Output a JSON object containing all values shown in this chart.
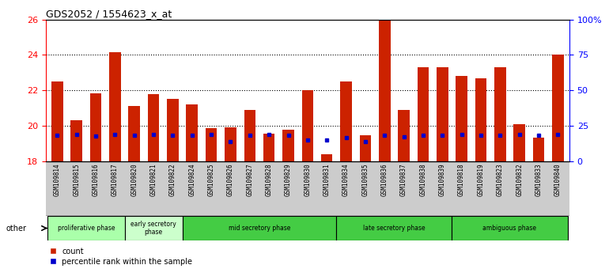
{
  "title": "GDS2052 / 1554623_x_at",
  "samples": [
    "GSM109814",
    "GSM109815",
    "GSM109816",
    "GSM109817",
    "GSM109820",
    "GSM109821",
    "GSM109822",
    "GSM109824",
    "GSM109825",
    "GSM109826",
    "GSM109827",
    "GSM109828",
    "GSM109829",
    "GSM109830",
    "GSM109831",
    "GSM109834",
    "GSM109835",
    "GSM109836",
    "GSM109837",
    "GSM109838",
    "GSM109839",
    "GSM109818",
    "GSM109819",
    "GSM109823",
    "GSM109832",
    "GSM109833",
    "GSM109840"
  ],
  "red_values": [
    22.5,
    20.3,
    21.85,
    24.15,
    21.1,
    21.8,
    21.5,
    21.2,
    19.85,
    19.9,
    20.9,
    19.55,
    19.75,
    22.0,
    18.4,
    22.5,
    19.45,
    26.1,
    20.9,
    23.3,
    23.3,
    22.8,
    22.7,
    23.3,
    20.1,
    19.3,
    24.0
  ],
  "blue_values": [
    19.45,
    19.5,
    19.4,
    19.5,
    19.45,
    19.5,
    19.45,
    19.45,
    19.5,
    19.1,
    19.45,
    19.5,
    19.45,
    19.2,
    19.2,
    19.3,
    19.1,
    19.45,
    19.35,
    19.45,
    19.45,
    19.5,
    19.45,
    19.45,
    19.5,
    19.45,
    19.5
  ],
  "phases": [
    {
      "label": "proliferative phase",
      "start": 0,
      "end": 4,
      "color": "#aaffaa"
    },
    {
      "label": "early secretory\nphase",
      "start": 4,
      "end": 7,
      "color": "#ccffcc"
    },
    {
      "label": "mid secretory phase",
      "start": 7,
      "end": 15,
      "color": "#44cc44"
    },
    {
      "label": "late secretory phase",
      "start": 15,
      "end": 21,
      "color": "#44cc44"
    },
    {
      "label": "ambiguous phase",
      "start": 21,
      "end": 27,
      "color": "#44cc44"
    }
  ],
  "ylim_left": [
    18,
    26
  ],
  "ylim_right": [
    0,
    100
  ],
  "yticks_left": [
    18,
    20,
    22,
    24,
    26
  ],
  "yticks_right": [
    0,
    25,
    50,
    75,
    100
  ],
  "ytick_labels_right": [
    "0",
    "25",
    "50",
    "75",
    "100%"
  ],
  "bar_color": "#cc2200",
  "blue_color": "#0000cc",
  "plot_bg_color": "#ffffff",
  "tick_label_area_color": "#cccccc",
  "baseline": 18
}
